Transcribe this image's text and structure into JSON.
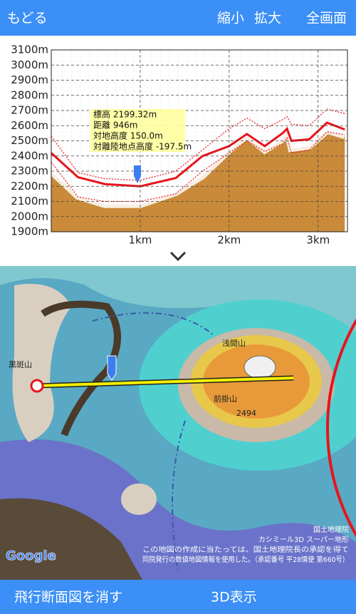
{
  "header": {
    "back": "もどる",
    "zoom_out": "縮小",
    "zoom_in": "拡大",
    "fullscreen": "全画面"
  },
  "chart_data": {
    "type": "line",
    "x": [
      0,
      0.3,
      0.6,
      1.0,
      1.4,
      1.7,
      2.0,
      2.2,
      2.4,
      2.6,
      2.65,
      2.7,
      2.9,
      3.1,
      3.3
    ],
    "series": [
      {
        "color": "#c98a3a",
        "area": true,
        "values": [
          2300,
          2135,
          2080,
          2080,
          2160,
          2270,
          2440,
          2535,
          2440,
          2510,
          2580,
          2450,
          2465,
          2570,
          2535
        ]
      },
      {
        "color": "#e8141c",
        "style": "dotted",
        "values": [
          2530,
          2290,
          2250,
          2240,
          2300,
          2440,
          2580,
          2650,
          2580,
          2640,
          2660,
          2610,
          2600,
          2710,
          2680
        ]
      },
      {
        "color": "#e8141c",
        "style": "dotted",
        "values": [
          2360,
          2130,
          2100,
          2100,
          2150,
          2300,
          2420,
          2500,
          2430,
          2480,
          2520,
          2420,
          2440,
          2560,
          2540
        ]
      },
      {
        "color": "#e8141c",
        "style": "solid",
        "values": [
          2420,
          2260,
          2215,
          2200,
          2255,
          2400,
          2465,
          2545,
          2465,
          2550,
          2580,
          2500,
          2510,
          2620,
          2575
        ]
      }
    ],
    "xlim": [
      0,
      3.33
    ],
    "xticks": [
      {
        "value": 1,
        "label": "1km"
      },
      {
        "value": 2,
        "label": "2km"
      },
      {
        "value": 3,
        "label": "3km"
      }
    ],
    "ylim": [
      1900,
      3100
    ],
    "yticks": [
      {
        "value": 1900,
        "label": "1900m"
      },
      {
        "value": 2000,
        "label": "2000m"
      },
      {
        "value": 2100,
        "label": "2100m"
      },
      {
        "value": 2200,
        "label": "2200m"
      },
      {
        "value": 2300,
        "label": "2300m"
      },
      {
        "value": 2400,
        "label": "2400m"
      },
      {
        "value": 2500,
        "label": "2500m"
      },
      {
        "value": 2600,
        "label": "2600m"
      },
      {
        "value": 2700,
        "label": "2700m"
      },
      {
        "value": 2800,
        "label": "2800m"
      },
      {
        "value": 2900,
        "label": "2900m"
      },
      {
        "value": 3000,
        "label": "3000m"
      },
      {
        "value": 3100,
        "label": "3100m"
      }
    ],
    "grid": true,
    "annotations": [
      "標高 2199.32m",
      "距離 946m",
      "対地高度 150.0m",
      "対離陸地点高度 -197.5m"
    ]
  },
  "map": {
    "labels": [
      "黒斑山",
      "浅間山",
      "前掛山",
      "2494"
    ],
    "attribution": [
      "国土地理院",
      "カシミール3D スーパー地形",
      "この地図の作成に当たっては、国土地理院長の承認を得て",
      "同院発行の数値地図情報を使用した。（承認番号 平28情使 第660号）"
    ],
    "logo": "Google"
  },
  "footer": {
    "hide_profile": "飛行断面図を消す",
    "view_3d": "3D表示"
  }
}
